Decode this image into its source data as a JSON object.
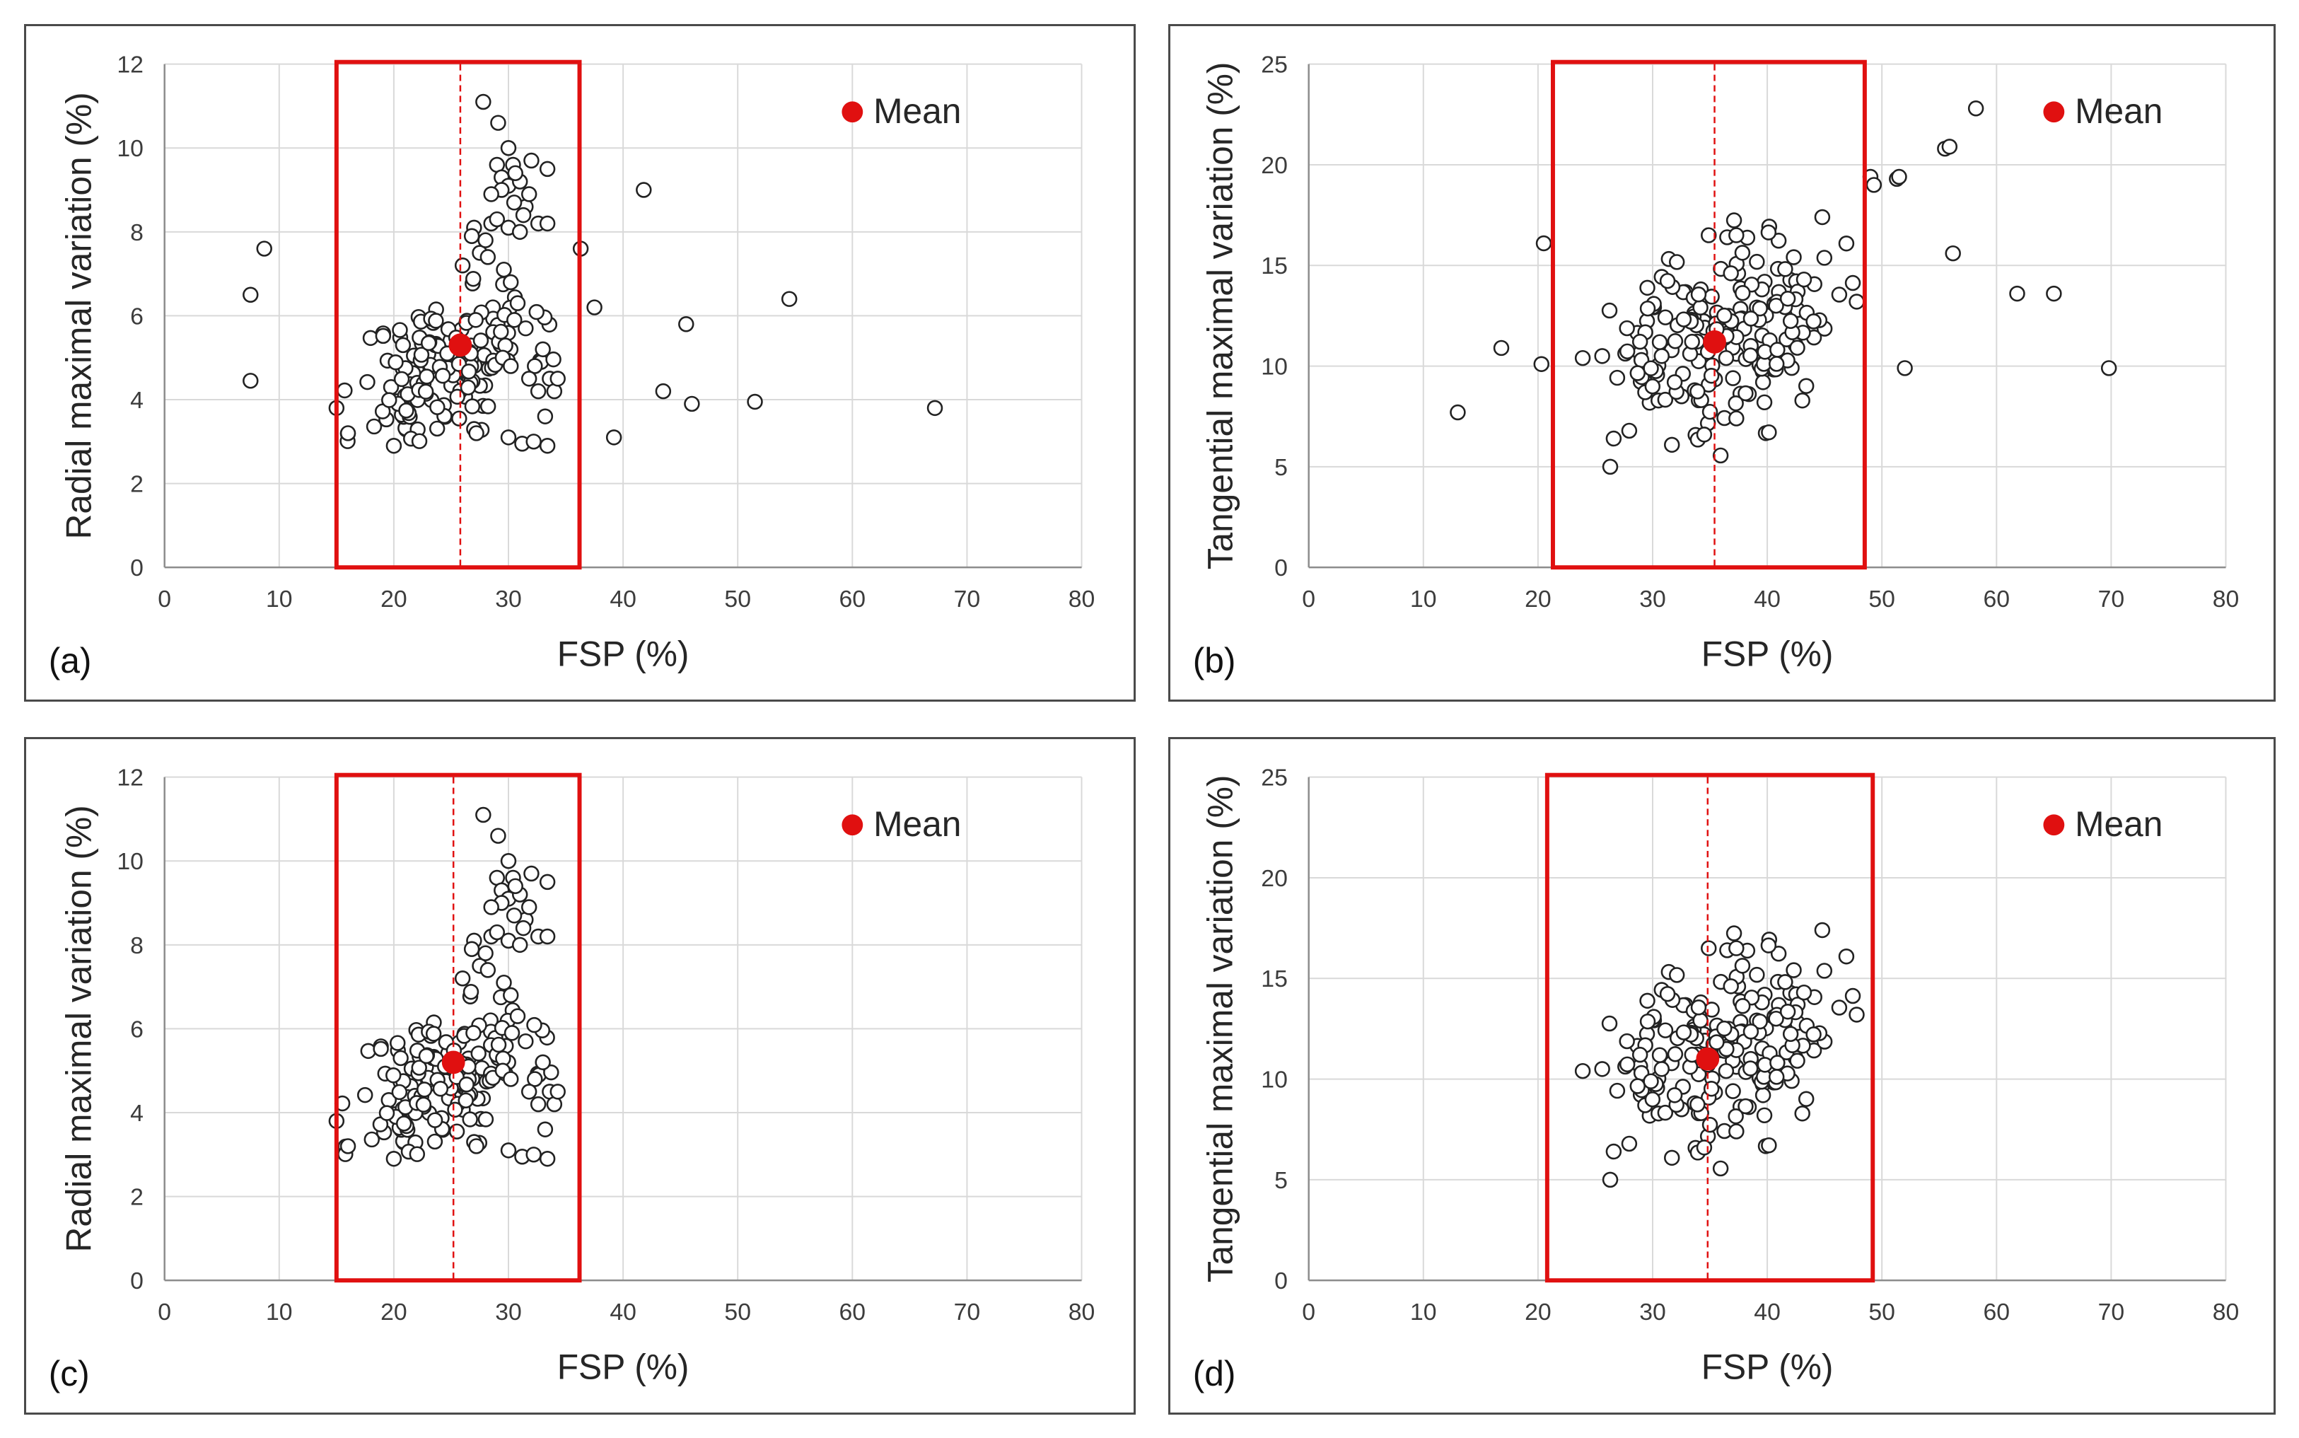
{
  "colors": {
    "highlight": "#e01010",
    "marker_edge": "#222222",
    "grid": "#d9d9d9"
  },
  "chart_data": [
    {
      "type": "scatter",
      "panel_label": "(a)",
      "xlabel": "FSP (%)",
      "ylabel": "Radial maximal variation (%)",
      "xlim": [
        0,
        80
      ],
      "ylim": [
        0,
        12
      ],
      "xticks": [
        0,
        10,
        20,
        30,
        40,
        50,
        60,
        70,
        80
      ],
      "yticks": [
        0,
        2,
        4,
        6,
        8,
        10,
        12
      ],
      "legend": "Mean",
      "mean": [
        25.8,
        5.3
      ],
      "box_x": [
        15,
        36.2
      ],
      "cluster": {
        "cx": 24.5,
        "cy": 4.8,
        "sx": 3.8,
        "sy": 0.9,
        "n": 150,
        "xr": [
          15.5,
          35
        ],
        "yr": [
          2.9,
          7
        ],
        "seed": 11
      },
      "points": [
        [
          7.5,
          4.45
        ],
        [
          7.5,
          6.5
        ],
        [
          8.7,
          7.6
        ],
        [
          15,
          3.8
        ],
        [
          16,
          3.2
        ],
        [
          20,
          2.9
        ],
        [
          27,
          3.3
        ],
        [
          27.2,
          3.2
        ],
        [
          30,
          3.1
        ],
        [
          31.2,
          2.95
        ],
        [
          32.2,
          3.0
        ],
        [
          33.4,
          2.9
        ],
        [
          26,
          7.2
        ],
        [
          27,
          8.1
        ],
        [
          27.5,
          7.5
        ],
        [
          28,
          7.8
        ],
        [
          28.5,
          8.2
        ],
        [
          27.8,
          11.1
        ],
        [
          29.1,
          10.6
        ],
        [
          29,
          9.6
        ],
        [
          29.4,
          9.3
        ],
        [
          30,
          10.0
        ],
        [
          30,
          9.1
        ],
        [
          30.4,
          9.6
        ],
        [
          31,
          9.2
        ],
        [
          31.5,
          8.6
        ],
        [
          32,
          9.7
        ],
        [
          33.4,
          9.5
        ],
        [
          32.6,
          8.2
        ],
        [
          33.4,
          8.2
        ],
        [
          30.5,
          8.7
        ],
        [
          31.3,
          8.4
        ],
        [
          28.2,
          7.4
        ],
        [
          29,
          8.3
        ],
        [
          30,
          8.1
        ],
        [
          29.4,
          9.0
        ],
        [
          31.8,
          8.9
        ],
        [
          30.6,
          9.4
        ],
        [
          28.5,
          8.9
        ],
        [
          31,
          8.0
        ],
        [
          26.8,
          7.9
        ],
        [
          29.6,
          7.1
        ],
        [
          30.2,
          6.8
        ],
        [
          30.8,
          6.3
        ],
        [
          31.5,
          5.7
        ],
        [
          32.3,
          4.8
        ],
        [
          33.0,
          5.2
        ],
        [
          33.6,
          4.5
        ],
        [
          34,
          4.2
        ],
        [
          34.3,
          4.5
        ],
        [
          33.2,
          3.6
        ],
        [
          32.6,
          4.2
        ],
        [
          31.8,
          4.5
        ],
        [
          29.5,
          5.0
        ],
        [
          30.2,
          4.8
        ],
        [
          36.3,
          7.6
        ],
        [
          37.5,
          6.2
        ],
        [
          39.2,
          3.1
        ],
        [
          41.8,
          9.0
        ],
        [
          43.5,
          4.2
        ],
        [
          45.5,
          5.8
        ],
        [
          46,
          3.9
        ],
        [
          51.5,
          3.95
        ],
        [
          54.5,
          6.4
        ],
        [
          67.2,
          3.8
        ]
      ]
    },
    {
      "type": "scatter",
      "panel_label": "(b)",
      "xlabel": "FSP (%)",
      "ylabel": "Tangential maximal variation (%)",
      "xlim": [
        0,
        80
      ],
      "ylim": [
        0,
        25
      ],
      "xticks": [
        0,
        10,
        20,
        30,
        40,
        50,
        60,
        70,
        80
      ],
      "yticks": [
        0,
        5,
        10,
        15,
        20,
        25
      ],
      "legend": "Mean",
      "mean": [
        35.4,
        11.2
      ],
      "box_x": [
        21.3,
        48.5
      ],
      "cluster": {
        "cx": 35.5,
        "cy": 11.3,
        "sx": 5.2,
        "sy": 2.3,
        "n": 190,
        "xr": [
          26,
          47.5
        ],
        "yr": [
          5.5,
          17.5
        ],
        "seed": 23
      },
      "points": [
        [
          13,
          7.7
        ],
        [
          16.8,
          10.9
        ],
        [
          20.3,
          10.1
        ],
        [
          20.5,
          16.1
        ],
        [
          23.9,
          10.4
        ],
        [
          25.6,
          10.5
        ],
        [
          26.3,
          5.0
        ],
        [
          26.6,
          6.4
        ],
        [
          34.5,
          6.6
        ],
        [
          37.3,
          7.4
        ],
        [
          36.5,
          16.4
        ],
        [
          37.3,
          16.5
        ],
        [
          44.8,
          17.4
        ],
        [
          47.8,
          13.2
        ],
        [
          49,
          19.4
        ],
        [
          49.3,
          19.0
        ],
        [
          51.3,
          19.3
        ],
        [
          51.5,
          19.4
        ],
        [
          52,
          9.9
        ],
        [
          55.5,
          20.8
        ],
        [
          55.9,
          20.9
        ],
        [
          56.2,
          15.6
        ],
        [
          58.2,
          22.8
        ],
        [
          61.8,
          13.6
        ],
        [
          65,
          13.6
        ],
        [
          69.8,
          9.9
        ]
      ]
    },
    {
      "type": "scatter",
      "panel_label": "(c)",
      "xlabel": "FSP (%)",
      "ylabel": "Radial maximal variation (%)",
      "xlim": [
        0,
        80
      ],
      "ylim": [
        0,
        12
      ],
      "xticks": [
        0,
        10,
        20,
        30,
        40,
        50,
        60,
        70,
        80
      ],
      "yticks": [
        0,
        2,
        4,
        6,
        8,
        10,
        12
      ],
      "legend": "Mean",
      "mean": [
        25.2,
        5.2
      ],
      "box_x": [
        15,
        36.2
      ],
      "cluster": {
        "cx": 24.3,
        "cy": 4.8,
        "sx": 3.8,
        "sy": 0.9,
        "n": 150,
        "xr": [
          15.5,
          35
        ],
        "yr": [
          2.9,
          7
        ],
        "seed": 11
      },
      "points": [
        [
          15,
          3.8
        ],
        [
          16,
          3.2
        ],
        [
          20,
          2.9
        ],
        [
          27,
          3.3
        ],
        [
          27.2,
          3.2
        ],
        [
          30,
          3.1
        ],
        [
          31.2,
          2.95
        ],
        [
          32.2,
          3.0
        ],
        [
          33.4,
          2.9
        ],
        [
          26,
          7.2
        ],
        [
          27,
          8.1
        ],
        [
          27.5,
          7.5
        ],
        [
          28,
          7.8
        ],
        [
          28.5,
          8.2
        ],
        [
          27.8,
          11.1
        ],
        [
          29.1,
          10.6
        ],
        [
          29,
          9.6
        ],
        [
          29.4,
          9.3
        ],
        [
          30,
          10.0
        ],
        [
          30,
          9.1
        ],
        [
          30.4,
          9.6
        ],
        [
          31,
          9.2
        ],
        [
          31.5,
          8.6
        ],
        [
          32,
          9.7
        ],
        [
          33.4,
          9.5
        ],
        [
          32.6,
          8.2
        ],
        [
          33.4,
          8.2
        ],
        [
          30.5,
          8.7
        ],
        [
          31.3,
          8.4
        ],
        [
          28.2,
          7.4
        ],
        [
          29,
          8.3
        ],
        [
          30,
          8.1
        ],
        [
          29.4,
          9.0
        ],
        [
          31.8,
          8.9
        ],
        [
          30.6,
          9.4
        ],
        [
          28.5,
          8.9
        ],
        [
          31,
          8.0
        ],
        [
          26.8,
          7.9
        ],
        [
          29.6,
          7.1
        ],
        [
          30.2,
          6.8
        ],
        [
          30.8,
          6.3
        ],
        [
          31.5,
          5.7
        ],
        [
          32.3,
          4.8
        ],
        [
          33.0,
          5.2
        ],
        [
          33.6,
          4.5
        ],
        [
          34,
          4.2
        ],
        [
          34.3,
          4.5
        ],
        [
          33.2,
          3.6
        ],
        [
          32.6,
          4.2
        ],
        [
          31.8,
          4.5
        ],
        [
          29.5,
          5.0
        ],
        [
          30.2,
          4.8
        ]
      ]
    },
    {
      "type": "scatter",
      "panel_label": "(d)",
      "xlabel": "FSP (%)",
      "ylabel": "Tangential maximal variation (%)",
      "xlim": [
        0,
        80
      ],
      "ylim": [
        0,
        25
      ],
      "xticks": [
        0,
        10,
        20,
        30,
        40,
        50,
        60,
        70,
        80
      ],
      "yticks": [
        0,
        5,
        10,
        15,
        20,
        25
      ],
      "legend": "Mean",
      "mean": [
        34.8,
        11.0
      ],
      "box_x": [
        20.8,
        49.2
      ],
      "cluster": {
        "cx": 35.5,
        "cy": 11.3,
        "sx": 5.2,
        "sy": 2.3,
        "n": 190,
        "xr": [
          26,
          47.5
        ],
        "yr": [
          5.5,
          17.5
        ],
        "seed": 23
      },
      "points": [
        [
          23.9,
          10.4
        ],
        [
          25.6,
          10.5
        ],
        [
          26.3,
          5.0
        ],
        [
          26.6,
          6.4
        ],
        [
          34.5,
          6.6
        ],
        [
          37.3,
          7.4
        ],
        [
          36.5,
          16.4
        ],
        [
          37.3,
          16.5
        ],
        [
          44.8,
          17.4
        ],
        [
          47.8,
          13.2
        ]
      ]
    }
  ]
}
